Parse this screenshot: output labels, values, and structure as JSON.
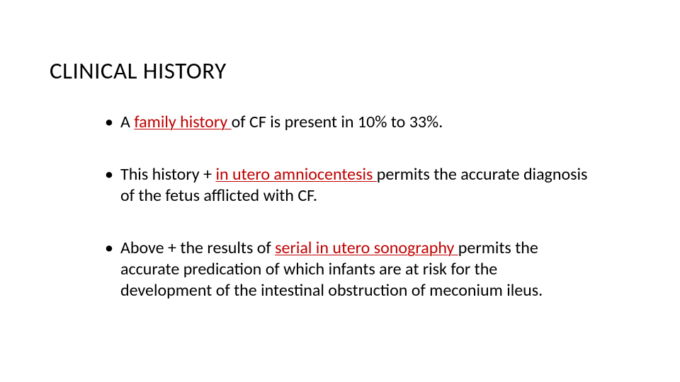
{
  "slide": {
    "title": "CLINICAL HISTORY",
    "title_color": "#000000",
    "title_fontsize": 33,
    "background_color": "#ffffff",
    "accent_color": "#c00000",
    "body_fontsize": 24,
    "bullets": [
      {
        "segments": [
          {
            "text": "A ",
            "red": false,
            "underline": false
          },
          {
            "text": "family history ",
            "red": true,
            "underline": true
          },
          {
            "text": "of CF is present in 10% to 33%.",
            "red": false,
            "underline": false
          }
        ]
      },
      {
        "segments": [
          {
            "text": "This history + ",
            "red": false,
            "underline": false
          },
          {
            "text": "in utero amniocentesis ",
            "red": true,
            "underline": true
          },
          {
            "text": "permits the accurate diagnosis of the fetus afflicted with CF.",
            "red": false,
            "underline": false
          }
        ]
      },
      {
        "segments": [
          {
            "text": "Above + the results of ",
            "red": false,
            "underline": false
          },
          {
            "text": "serial in utero sonography ",
            "red": true,
            "underline": true
          },
          {
            "text": "permits the accurate predication of which infants are at risk for the development of the intestinal obstruction of meconium ileus.",
            "red": false,
            "underline": false
          }
        ]
      }
    ]
  }
}
